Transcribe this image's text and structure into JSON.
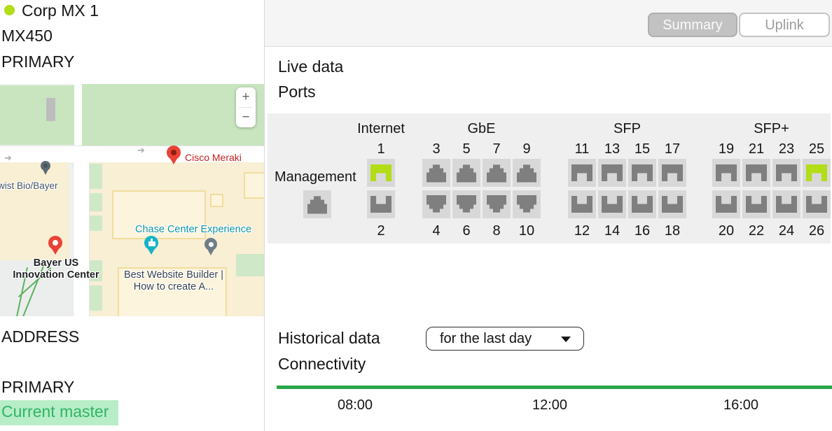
{
  "device": {
    "name": "Corp MX 1",
    "model": "MX450",
    "role": "PRIMARY"
  },
  "sidebar": {
    "address_label": "ADDRESS",
    "primary_label": "PRIMARY",
    "master_status": "Current master"
  },
  "map": {
    "zoom_in": "+",
    "zoom_out": "−",
    "labels": {
      "twist": "wist Bio/Bayer",
      "meraki": "Cisco Meraki",
      "chase": "Chase Center Experience",
      "bayer_line1": "Bayer US",
      "bayer_line2": "Innovation Center",
      "best_line1": "Best Website Builder |",
      "best_line2": "How to create A..."
    }
  },
  "tabs": {
    "summary": "Summary",
    "uplink": "Uplink"
  },
  "live": {
    "title": "Live data",
    "ports_title": "Ports",
    "management_label": "Management",
    "port_groups": [
      {
        "name": "Internet",
        "icon_type": "sfp",
        "top": [
          {
            "num": "1",
            "state": "active"
          }
        ],
        "bottom": [
          {
            "num": "2",
            "state": "idle"
          }
        ]
      },
      {
        "name": "GbE",
        "icon_type": "rj45",
        "top": [
          {
            "num": "3",
            "state": "idle"
          },
          {
            "num": "5",
            "state": "idle"
          },
          {
            "num": "7",
            "state": "idle"
          },
          {
            "num": "9",
            "state": "idle"
          }
        ],
        "bottom": [
          {
            "num": "4",
            "state": "idle"
          },
          {
            "num": "6",
            "state": "idle"
          },
          {
            "num": "8",
            "state": "idle"
          },
          {
            "num": "10",
            "state": "idle"
          }
        ]
      },
      {
        "name": "SFP",
        "icon_type": "sfp",
        "top": [
          {
            "num": "11",
            "state": "idle"
          },
          {
            "num": "13",
            "state": "idle"
          },
          {
            "num": "15",
            "state": "idle"
          },
          {
            "num": "17",
            "state": "idle"
          }
        ],
        "bottom": [
          {
            "num": "12",
            "state": "idle"
          },
          {
            "num": "14",
            "state": "idle"
          },
          {
            "num": "16",
            "state": "idle"
          },
          {
            "num": "18",
            "state": "idle"
          }
        ]
      },
      {
        "name": "SFP+",
        "icon_type": "sfp",
        "top": [
          {
            "num": "19",
            "state": "idle"
          },
          {
            "num": "21",
            "state": "idle"
          },
          {
            "num": "23",
            "state": "idle"
          },
          {
            "num": "25",
            "state": "active"
          }
        ],
        "bottom": [
          {
            "num": "20",
            "state": "idle"
          },
          {
            "num": "22",
            "state": "idle"
          },
          {
            "num": "24",
            "state": "idle"
          },
          {
            "num": "26",
            "state": "idle"
          }
        ]
      }
    ]
  },
  "historical": {
    "title": "Historical data",
    "range_selector": "for the last day",
    "section_title": "Connectivity",
    "time_ticks": [
      "08:00",
      "12:00",
      "16:00"
    ]
  },
  "colors": {
    "port_active": "#b2dd17",
    "port_idle": "#7f7f7f",
    "port_tile_bg": "#d8d8d8",
    "panel_bg": "#efefef",
    "master_text": "#2fb564",
    "master_bg": "#b7edc7",
    "connectivity_green": "#2aa64a"
  }
}
